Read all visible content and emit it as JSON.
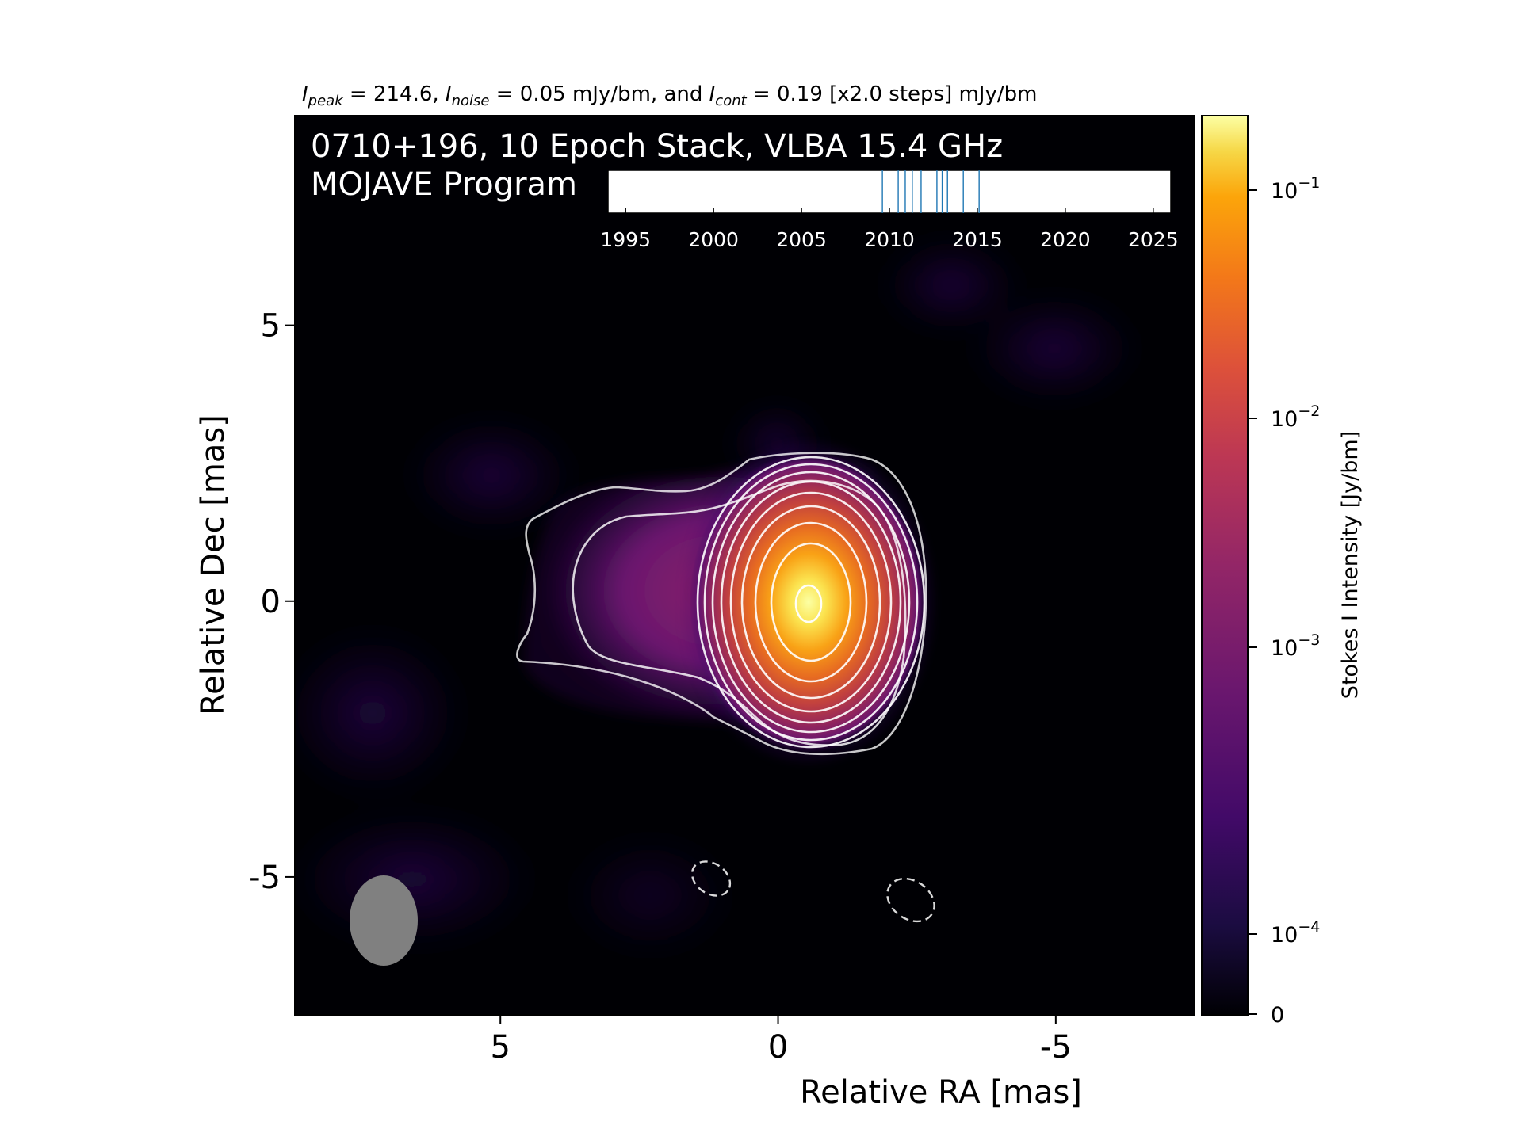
{
  "figure": {
    "header": {
      "peak_sym": "I",
      "peak_sub": "peak",
      "peak_val": " = 214.6, ",
      "noise_sym": "I",
      "noise_sub": "noise",
      "noise_val": " = 0.05 mJy/bm, and ",
      "cont_sym": "I",
      "cont_sub": "cont",
      "cont_val": " = 0.19 [x2.0 steps] mJy/bm"
    },
    "overlay_line1": "0710+196, 10 Epoch Stack, VLBA 15.4 GHz",
    "overlay_line2": "MOJAVE Program"
  },
  "colors": {
    "background": "#000000",
    "contour": "#ffffff",
    "epoch_line": "#1f77b4",
    "beam": "#808080"
  },
  "chart_data": [
    {
      "type": "heatmap",
      "title": "0710+196, 10 Epoch Stack, VLBA 15.4 GHz",
      "xlabel": "Relative RA [mas]",
      "ylabel": "Relative Dec [mas]",
      "xlim": [
        8.7,
        -7.5
      ],
      "ylim": [
        -7.5,
        8.8
      ],
      "x_axis_inverted": true,
      "xticks": [
        5,
        0,
        -5
      ],
      "xtick_labels": [
        "5",
        "0",
        "-5"
      ],
      "yticks": [
        -5,
        0,
        5
      ],
      "ytick_labels": [
        "-5",
        "0",
        "5"
      ],
      "colormap": "inferno",
      "color_scale": "log",
      "peak_position_mas": [
        0,
        0
      ],
      "contour_base_mJy_per_bm": 0.19,
      "contour_step_factor": 2.0,
      "negative_contours_mas": [
        [
          1.8,
          -5.1
        ],
        [
          -1.8,
          -5.4
        ]
      ],
      "beam": {
        "center_mas": [
          7.7,
          -5.8
        ],
        "major_mas": 1.6,
        "minor_mas": 1.2,
        "pa_deg": 0
      },
      "colorbar": {
        "label": "Stokes I Intensity [Jy/bm]",
        "scale": "log",
        "ticks": [
          "10^{-1}",
          "10^{-2}",
          "10^{-3}",
          "10^{-4}",
          "0"
        ],
        "tick_base": "10",
        "tick_exponents": [
          "−1",
          "−2",
          "−3",
          "−4"
        ],
        "zero_label": "0"
      }
    },
    {
      "type": "epoch_timeline",
      "xlim": [
        1994,
        2026
      ],
      "xticks": [
        1995,
        2000,
        2005,
        2010,
        2015,
        2020,
        2025
      ],
      "xtick_labels": [
        "1995",
        "2000",
        "2005",
        "2010",
        "2015",
        "2020",
        "2025"
      ],
      "epochs": [
        2009.6,
        2010.5,
        2010.9,
        2011.3,
        2011.8,
        2012.7,
        2013.0,
        2013.3,
        2014.2,
        2015.1
      ]
    }
  ]
}
